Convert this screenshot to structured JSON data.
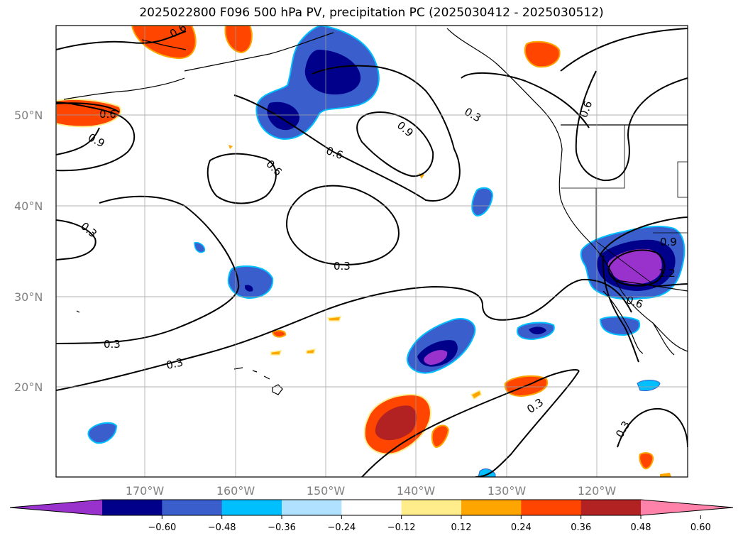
{
  "title": "2025022800 F096 500 hPa PV, precipitation PC (2025030412 - 2025030512)",
  "lat_labels": [
    "50°N",
    "40°N",
    "30°N",
    "20°N"
  ],
  "lon_labels": [
    "170°W",
    "160°W",
    "150°W",
    "140°W",
    "130°W",
    "120°W"
  ],
  "contour_labels": [
    "0.6",
    "0.9",
    "0.6",
    "0.9",
    "0.3",
    "0.6",
    "0.6",
    "0.3",
    "0.3",
    "0.3",
    "0.3",
    "0.3",
    "0.3",
    "0.9",
    "1.2",
    "0.6",
    "0.6"
  ],
  "colorbar": {
    "ticks": [
      "−0.60",
      "−0.48",
      "−0.36",
      "−0.24",
      "−0.12",
      "0.12",
      "0.24",
      "0.36",
      "0.48",
      "0.60"
    ],
    "colors": [
      "#9932cc",
      "#00008b",
      "#3a5fcd",
      "#00bfff",
      "#b0e2ff",
      "#ffffff",
      "#ffec8b",
      "#ffa500",
      "#ff4500",
      "#b22222",
      "#ff82ab"
    ]
  }
}
